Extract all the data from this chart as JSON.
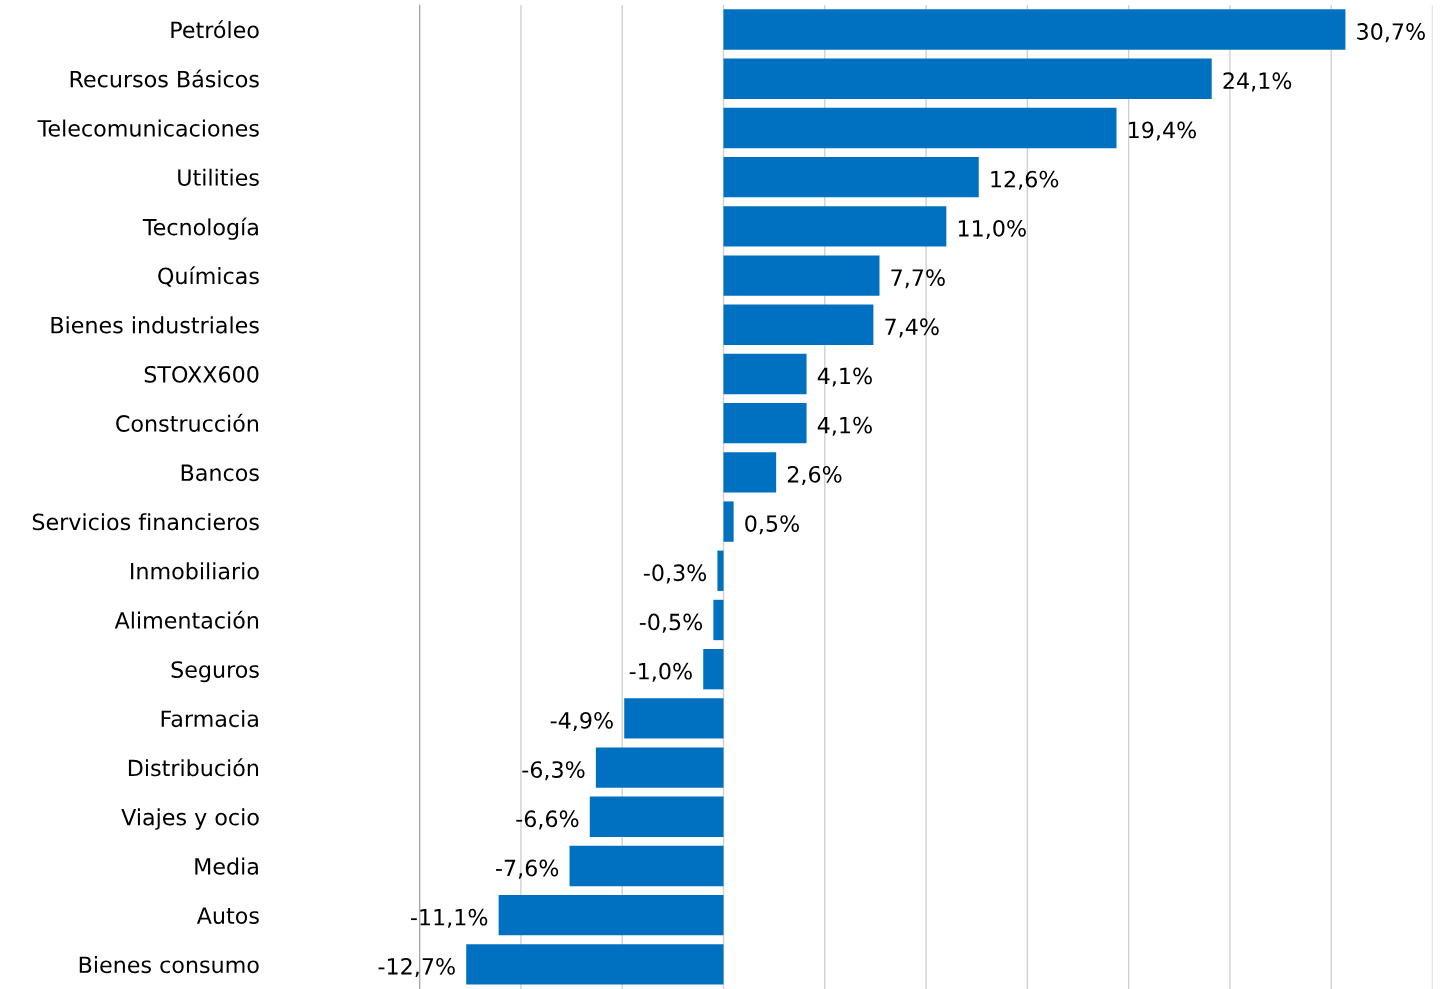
{
  "chart_data": {
    "type": "bar",
    "orientation": "horizontal",
    "categories": [
      "Petróleo",
      "Recursos Básicos",
      "Telecomunicaciones",
      "Utilities",
      "Tecnología",
      "Químicas",
      "Bienes industriales",
      "STOXX600",
      "Construcción",
      "Bancos",
      "Servicios financieros",
      "Inmobiliario",
      "Alimentación",
      "Seguros",
      "Farmacia",
      "Distribución",
      "Viajes y ocio",
      "Media",
      "Autos",
      "Bienes consumo"
    ],
    "values": [
      30.7,
      24.1,
      19.4,
      12.6,
      11.0,
      7.7,
      7.4,
      4.1,
      4.1,
      2.6,
      0.5,
      -0.3,
      -0.5,
      -1.0,
      -4.9,
      -6.3,
      -6.6,
      -7.6,
      -11.1,
      -12.7
    ],
    "value_labels": [
      "30,7%",
      "24,1%",
      "19,4%",
      "12,6%",
      "11,0%",
      "7,7%",
      "7,4%",
      "4,1%",
      "4,1%",
      "2,6%",
      "0,5%",
      "-0,3%",
      "-0,5%",
      "-1,0%",
      "-4,9%",
      "-6,3%",
      "-6,6%",
      "-7,6%",
      "-11,1%",
      "-12,7%"
    ],
    "color": "#0070c0",
    "xlim": [
      -15,
      35
    ],
    "xticks": [
      {
        "value": -15,
        "label": null
      },
      {
        "value": -10,
        "label": null
      },
      {
        "value": -5,
        "label": null
      },
      {
        "value": 0,
        "label": null
      },
      {
        "value": 5,
        "label": null
      },
      {
        "value": 10,
        "label": null
      },
      {
        "value": 15,
        "label": null
      },
      {
        "value": 20,
        "label": null
      },
      {
        "value": 25,
        "label": null
      },
      {
        "value": 30,
        "label": null
      },
      {
        "value": 35,
        "label": null
      }
    ],
    "grid": "x"
  }
}
